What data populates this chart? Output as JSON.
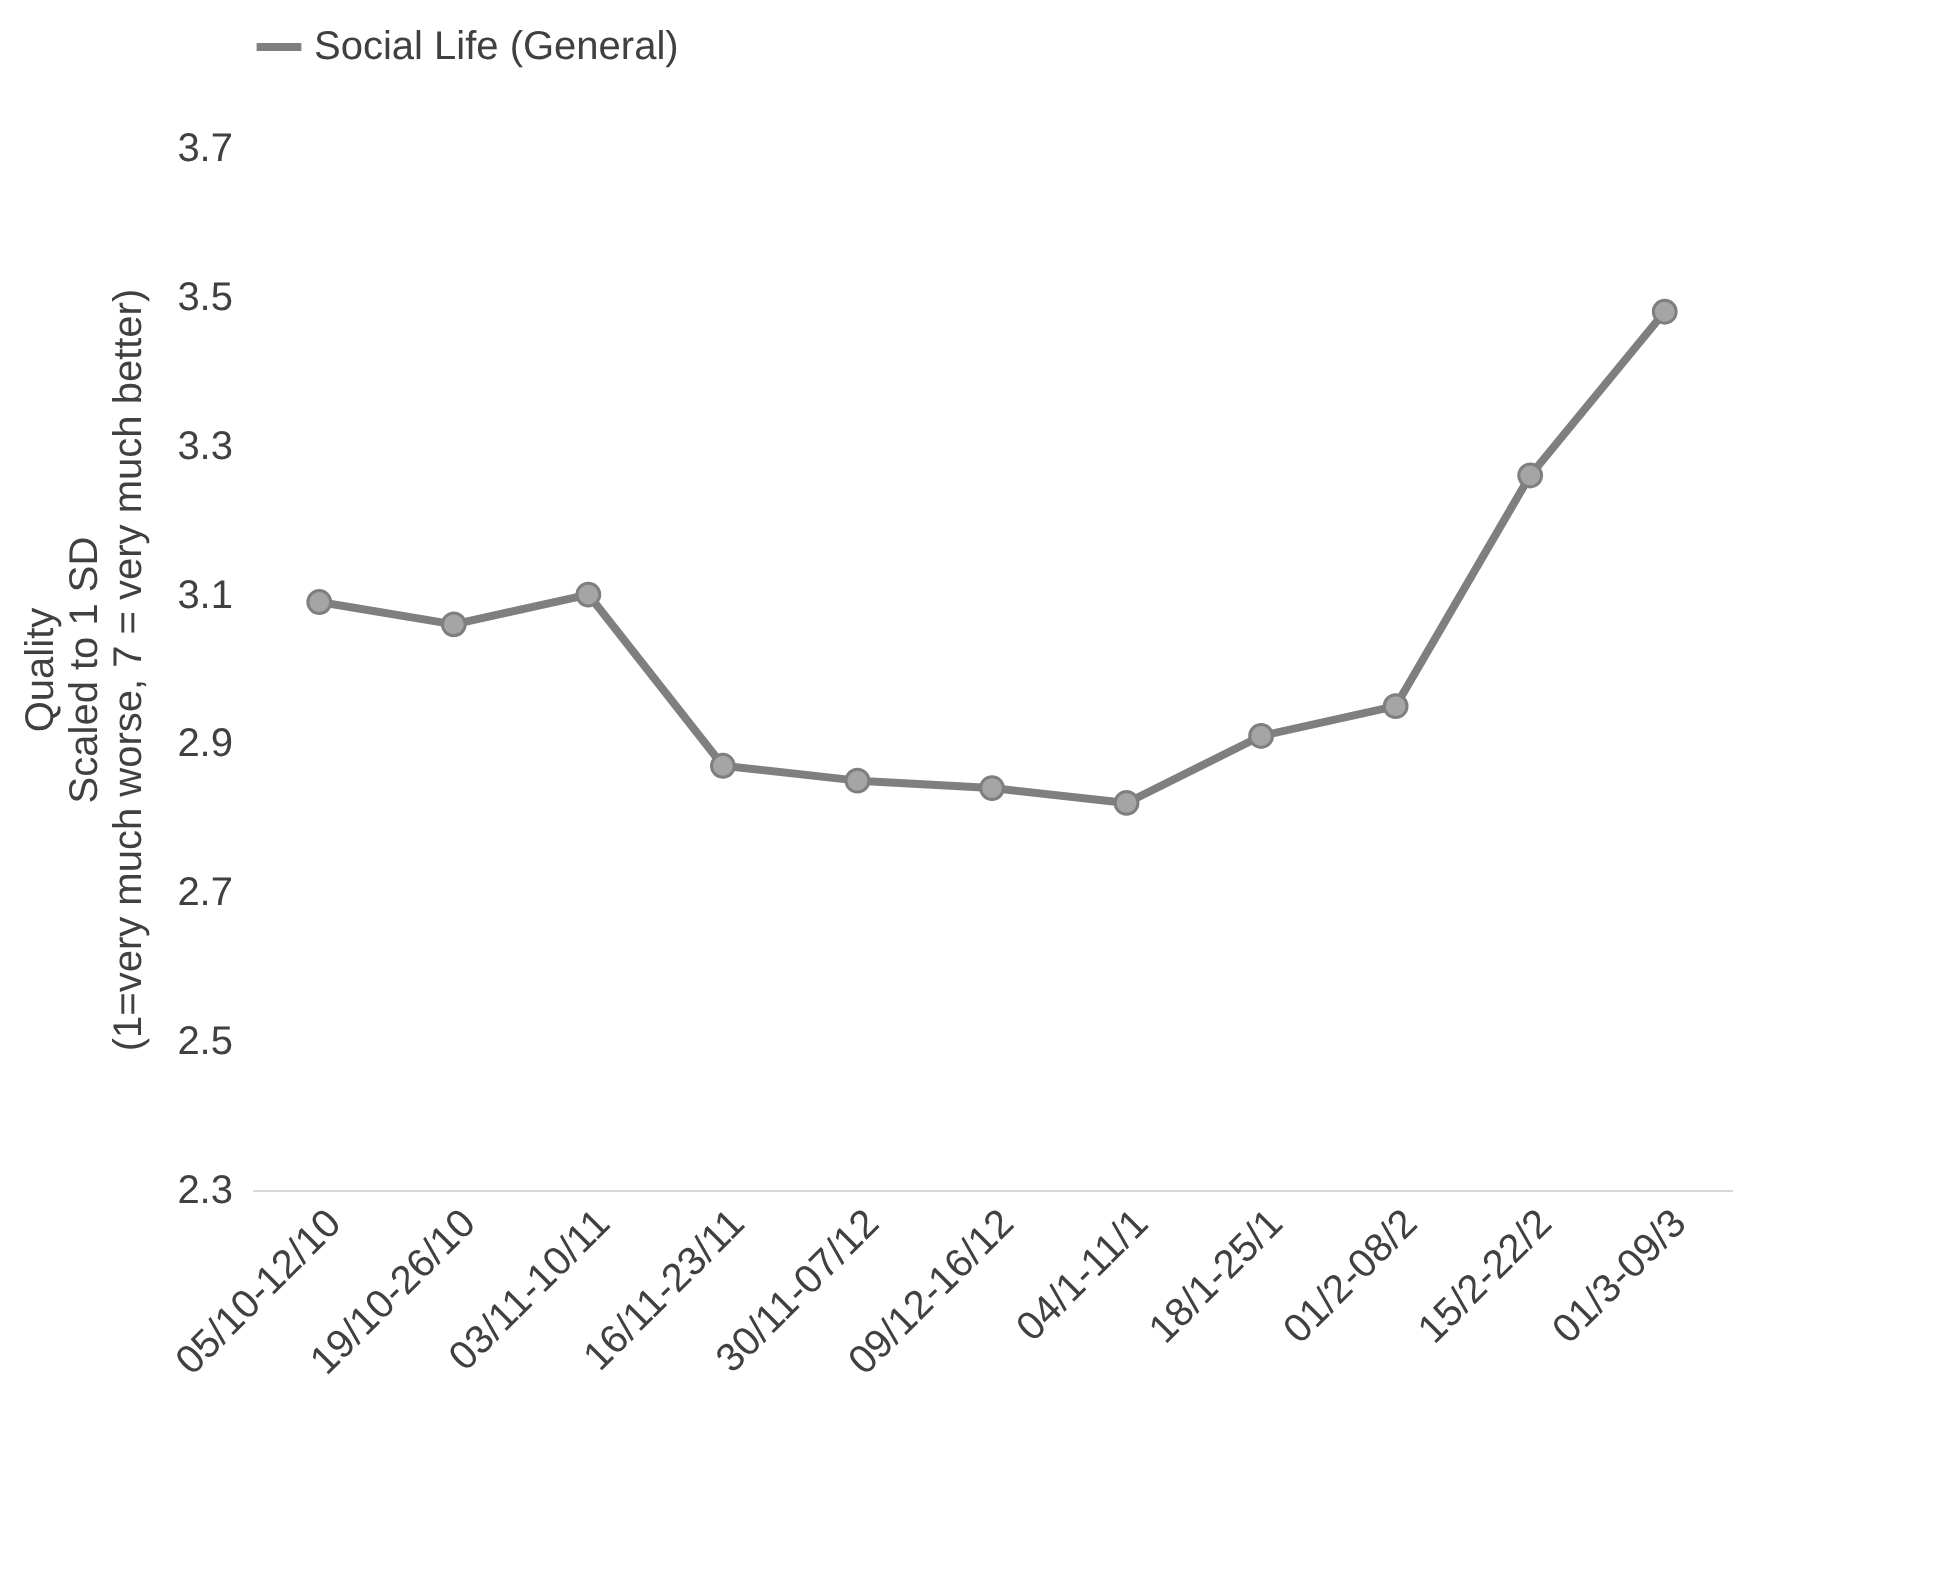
{
  "chart_data": {
    "type": "line",
    "ylabel": "Quality\nScaled to 1 SD\n(1=very much worse, 7 = very much better)",
    "categories": [
      "05/10-12/10",
      "19/10-26/10",
      "03/11-10/11",
      "16/11-23/11",
      "30/11-07/12",
      "09/12-16/12",
      "04/1-11/1",
      "18/1-25/1",
      "01/2-08/2",
      "15/2-22/2",
      "01/3-09/3"
    ],
    "series": [
      {
        "name": "Social Life (General)",
        "color": "#7f7f7f",
        "values": [
          3.09,
          3.06,
          3.1,
          2.87,
          2.85,
          2.84,
          2.82,
          2.91,
          2.95,
          3.26,
          3.48
        ]
      }
    ],
    "ylim": [
      2.3,
      3.7
    ],
    "yticks": [
      2.3,
      2.5,
      2.7,
      2.9,
      3.1,
      3.3,
      3.5,
      3.7
    ],
    "grid": false,
    "legend": "top",
    "marker": "circle",
    "line_style": "solid"
  }
}
